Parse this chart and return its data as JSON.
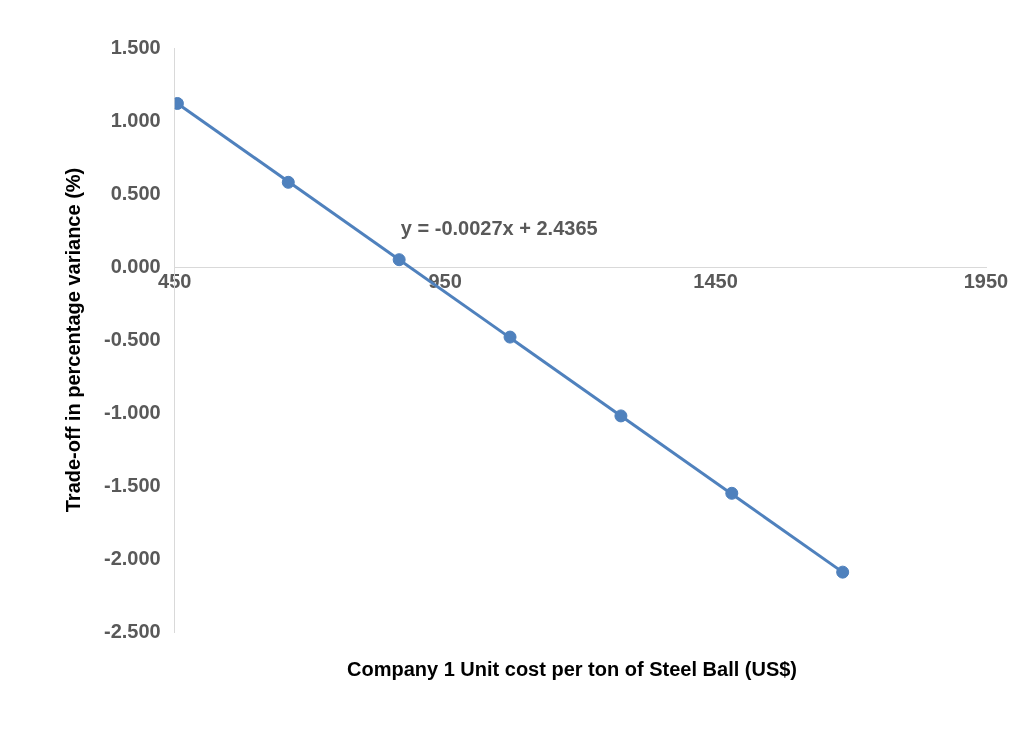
{
  "chart_data": {
    "type": "scatter",
    "xlabel": "Company 1 Unit cost per ton of Steel Ball (US$)",
    "ylabel": "Trade-off in percentage variance (%)",
    "xlim": [
      450,
      1950
    ],
    "xticks": [
      450,
      950,
      1450,
      1950
    ],
    "ylim": [
      -2.5,
      1.5
    ],
    "yticks": [
      {
        "value": -2.5,
        "label": "-2.500"
      },
      {
        "value": -2,
        "label": "-2.000"
      },
      {
        "value": -1.5,
        "label": "-1.500"
      },
      {
        "value": -1,
        "label": "-1.000"
      },
      {
        "value": -0.5,
        "label": "-0.500"
      },
      {
        "value": 0,
        "label": "0.000"
      },
      {
        "value": 0.5,
        "label": "0.500"
      },
      {
        "value": 1,
        "label": "1.000"
      },
      {
        "value": 1.5,
        "label": "1.500"
      }
    ],
    "series": [
      {
        "marker": "circle",
        "color": "#4f81bd",
        "x": [
          455,
          660,
          865,
          1070,
          1275,
          1480,
          1685
        ],
        "values": [
          1.12,
          0.58,
          0.05,
          -0.48,
          -1.02,
          -1.55,
          -2.09
        ]
      },
      {
        "type": "line",
        "color": "#4f81bd",
        "x": [
          455,
          1685
        ],
        "values": [
          1.12,
          -2.09
        ]
      }
    ],
    "annotations": [
      "y = -0.0027x + 2.4365"
    ],
    "grid": false,
    "legend": false
  }
}
